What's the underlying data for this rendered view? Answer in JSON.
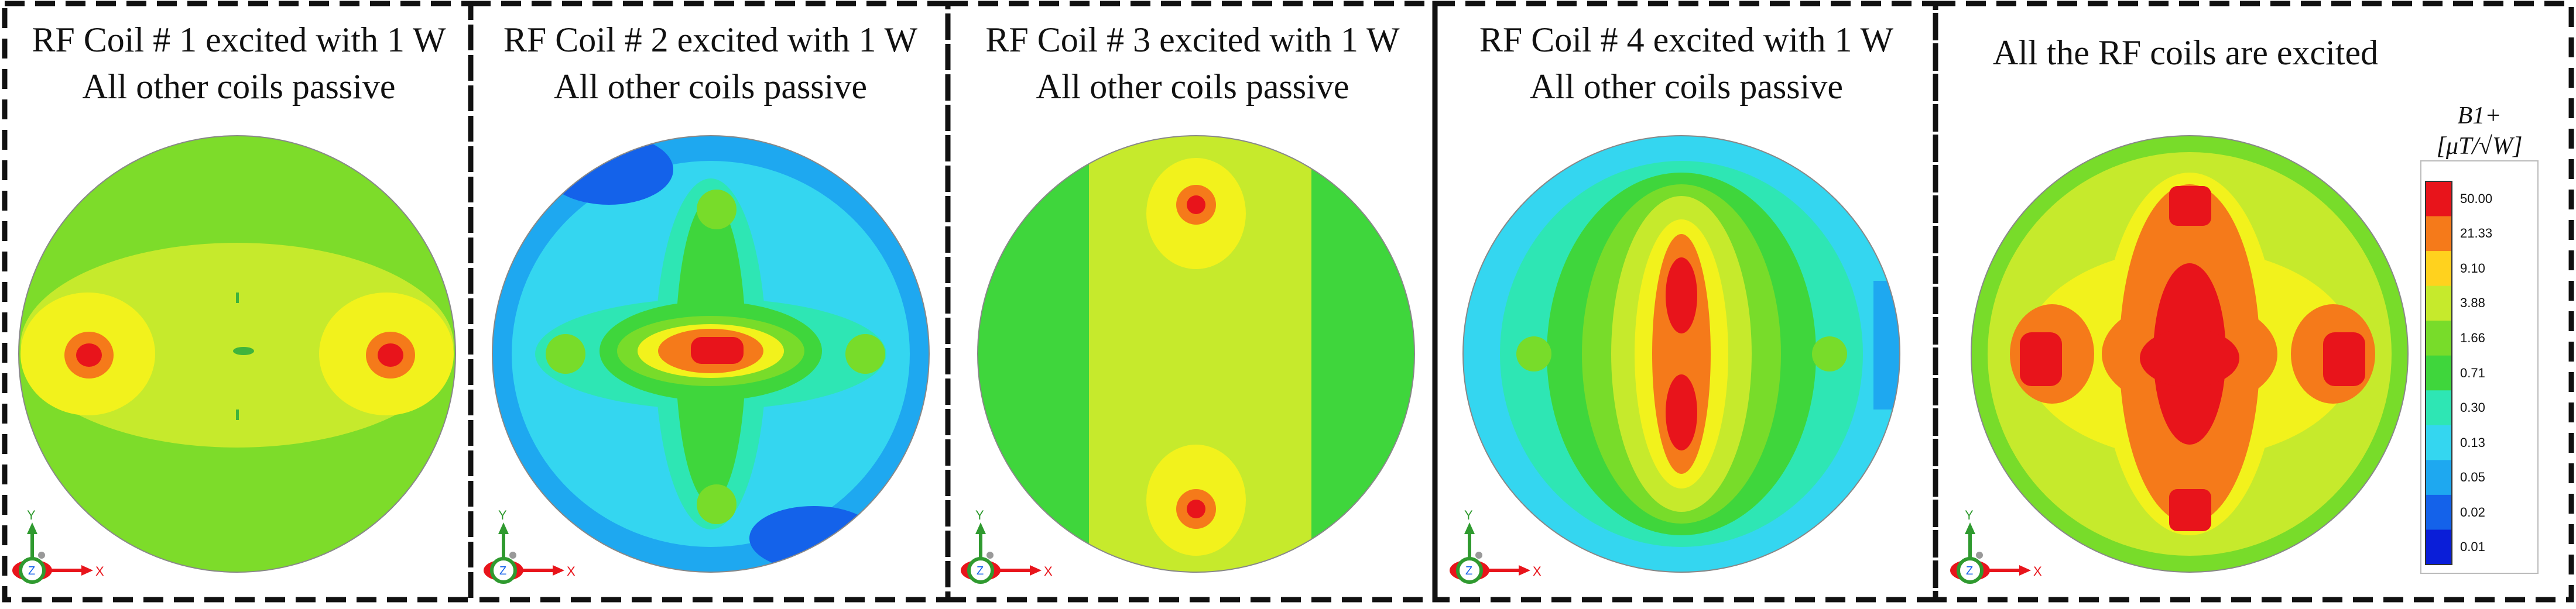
{
  "panels": [
    {
      "line1": "RF Coil # 1 excited with 1 W",
      "line2": "All other coils passive"
    },
    {
      "line1": "RF Coil # 2 excited with 1 W",
      "line2": "All other coils passive"
    },
    {
      "line1": "RF Coil # 3 excited with 1 W",
      "line2": "All other coils passive"
    },
    {
      "line1": "RF Coil # 4 excited with 1 W",
      "line2": "All other coils passive"
    },
    {
      "line1": "All the RF coils are excited",
      "line2": ""
    }
  ],
  "colorbar": {
    "title_line1": "B1+",
    "title_line2": "[μT/√W]",
    "labels": [
      "50.00",
      "21.33",
      "9.10",
      "3.88",
      "1.66",
      "0.71",
      "0.30",
      "0.13",
      "0.05",
      "0.02",
      "0.01"
    ],
    "colors": [
      "#e8141b",
      "#f57a1a",
      "#ffd21e",
      "#c6ea2c",
      "#78dc2a",
      "#3fd63c",
      "#2ee6b4",
      "#34d6f0",
      "#1ea8f0",
      "#1462ea",
      "#0a1ed8"
    ]
  },
  "triad": {
    "y": "Y",
    "x": "X",
    "z": "Z"
  }
}
